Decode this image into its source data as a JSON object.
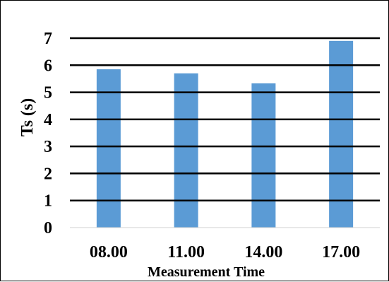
{
  "chart_data": {
    "type": "bar",
    "categories": [
      "08.00",
      "11.00",
      "14.00",
      "17.00"
    ],
    "values": [
      5.85,
      5.7,
      5.33,
      6.9
    ],
    "xlabel": "Measurement Time",
    "ylabel": "Ts (s)",
    "ylim": [
      0,
      7
    ],
    "yticks": [
      "0",
      "1",
      "2",
      "3",
      "4",
      "5",
      "6",
      "7"
    ],
    "grid": true,
    "legend": "none",
    "colors": {
      "bar": "#5B9BD5",
      "grid": "#000000"
    }
  }
}
